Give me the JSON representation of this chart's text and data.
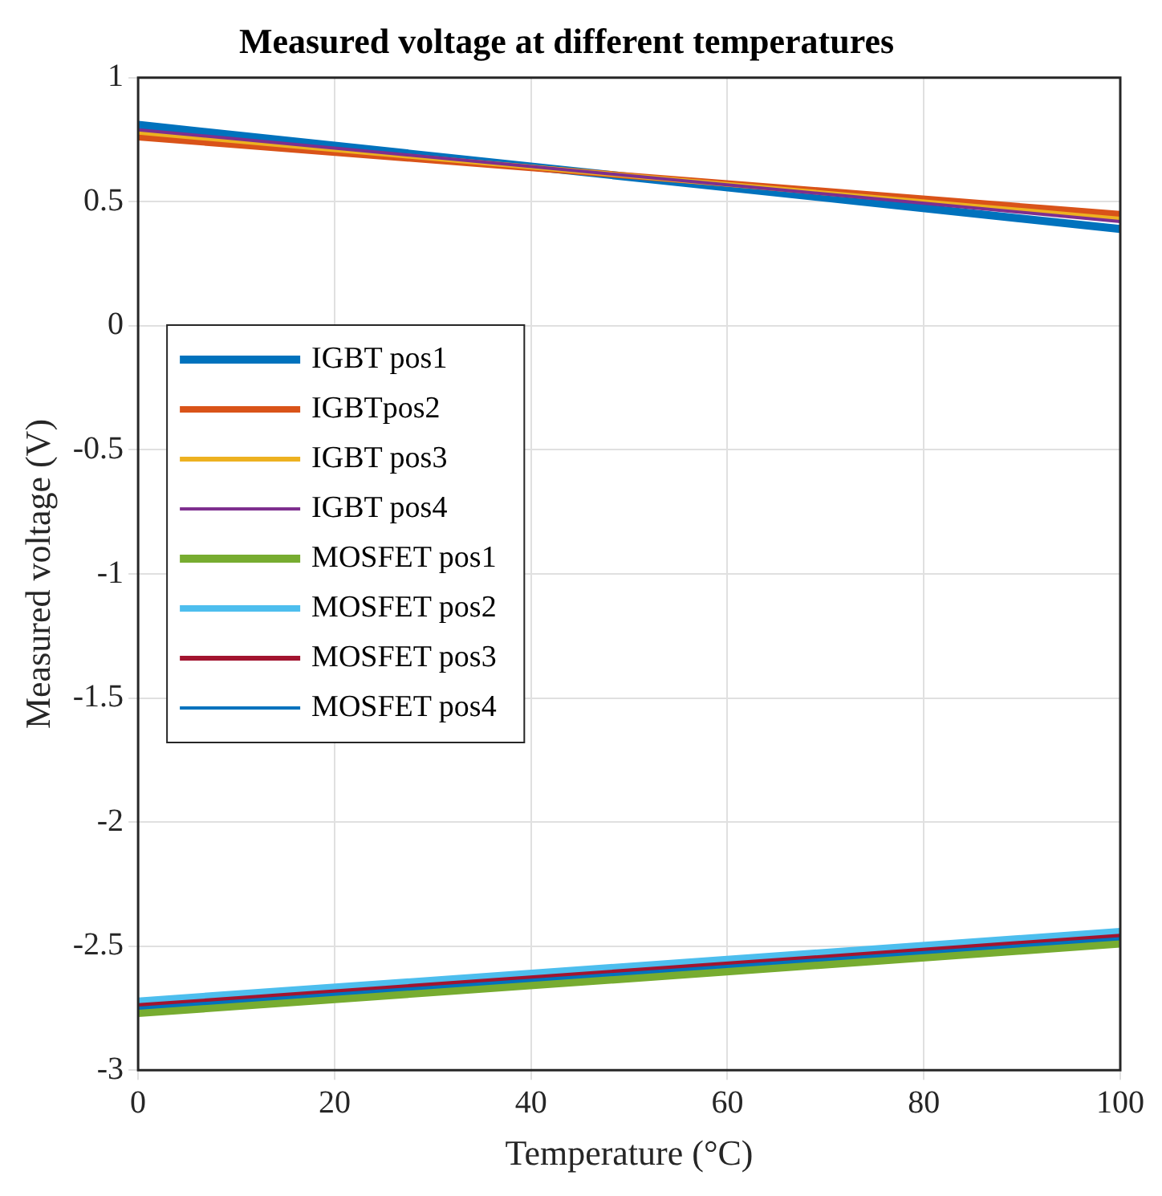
{
  "chart_data": {
    "type": "line",
    "title": "Measured voltage at different temperatures",
    "xlabel": "Temperature (°C)",
    "ylabel": "Measured voltage (V)",
    "x": [
      0,
      100
    ],
    "series": [
      {
        "name": "IGBT pos1",
        "color": "#0072bd",
        "values": [
          0.81,
          0.39
        ]
      },
      {
        "name": "IGBTpos2",
        "color": "#d95319",
        "values": [
          0.76,
          0.45
        ]
      },
      {
        "name": "IGBT pos3",
        "color": "#edb120",
        "values": [
          0.78,
          0.43
        ]
      },
      {
        "name": "IGBT pos4",
        "color": "#7e2f8e",
        "values": [
          0.79,
          0.42
        ]
      },
      {
        "name": "MOSFET pos1",
        "color": "#77ac30",
        "values": [
          -2.77,
          -2.49
        ]
      },
      {
        "name": "MOSFET pos2",
        "color": "#4dbeee",
        "values": [
          -2.72,
          -2.44
        ]
      },
      {
        "name": "MOSFET pos3",
        "color": "#a2142f",
        "values": [
          -2.74,
          -2.46
        ]
      },
      {
        "name": "MOSFET pos4",
        "color": "#0072bd",
        "values": [
          -2.75,
          -2.47
        ]
      }
    ],
    "xlim": [
      0,
      100
    ],
    "xticks": [
      0,
      20,
      40,
      60,
      80,
      100
    ],
    "ylim": [
      -3,
      1
    ],
    "yticks": [
      -3,
      -2.5,
      -2,
      -1.5,
      -1,
      -0.5,
      0,
      0.5,
      1
    ],
    "grid": true,
    "legend": "left",
    "marker": "none",
    "line_style": "solid"
  }
}
